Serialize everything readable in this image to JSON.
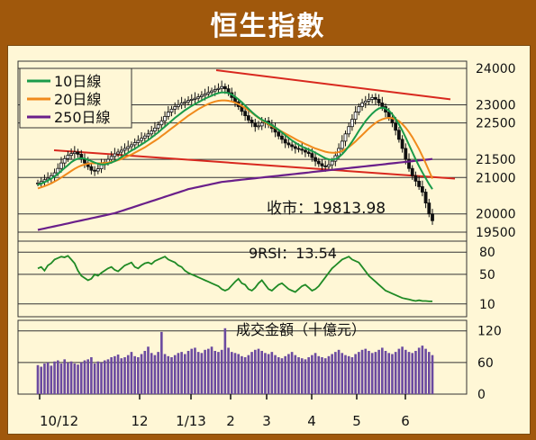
{
  "title": "恒生指數",
  "colors": {
    "background": "#a0580c",
    "panel": "#fff7d6",
    "ma10": "#1a9b4a",
    "ma20": "#f08a1c",
    "ma250": "#6a1f8a",
    "trendline": "#d8281e",
    "rsi": "#1f8a25",
    "volume": "#6b4aa0",
    "candle": "#111111"
  },
  "chart_data": [
    {
      "type": "line",
      "name": "price",
      "legend": [
        {
          "label": "10日線",
          "color": "#1a9b4a"
        },
        {
          "label": "20日線",
          "color": "#f08a1c"
        },
        {
          "label": "250日線",
          "color": "#6a1f8a"
        }
      ],
      "annotation": "收市：19813.98",
      "y_ticks": [
        24000,
        23000,
        22500,
        21500,
        21000,
        20000,
        19500
      ],
      "x_ticks": [
        "10/12",
        "12",
        "1/13",
        "2",
        "3",
        "4",
        "5",
        "6"
      ],
      "close": [
        20850,
        20890,
        20940,
        20980,
        21050,
        21130,
        21250,
        21400,
        21520,
        21610,
        21660,
        21700,
        21640,
        21520,
        21400,
        21300,
        21200,
        21180,
        21240,
        21350,
        21420,
        21500,
        21580,
        21650,
        21700,
        21750,
        21800,
        21850,
        21900,
        21960,
        22020,
        22080,
        22140,
        22200,
        22280,
        22360,
        22450,
        22560,
        22680,
        22800,
        22880,
        22950,
        23000,
        23050,
        23080,
        23120,
        23150,
        23180,
        23220,
        23260,
        23300,
        23340,
        23380,
        23420,
        23450,
        23500,
        23440,
        23330,
        23200,
        23080,
        22950,
        22820,
        22700,
        22580,
        22500,
        22400,
        22420,
        22500,
        22550,
        22450,
        22350,
        22250,
        22140,
        22050,
        21950,
        21900,
        21850,
        21800,
        21780,
        21750,
        21700,
        21660,
        21550,
        21450,
        21380,
        21320,
        21300,
        21350,
        21450,
        21600,
        21800,
        22000,
        22200,
        22400,
        22600,
        22800,
        22950,
        23050,
        23100,
        23150,
        23200,
        23150,
        23050,
        22950,
        22800,
        22650,
        22500,
        22300,
        22050,
        21800,
        21500,
        21250,
        21050,
        20900,
        20750,
        20600,
        20300,
        20000,
        19814
      ],
      "ma10": [
        20800,
        20830,
        20870,
        20920,
        20970,
        21030,
        21100,
        21180,
        21260,
        21340,
        21420,
        21480,
        21520,
        21530,
        21520,
        21490,
        21450,
        21410,
        21380,
        21360,
        21360,
        21380,
        21410,
        21450,
        21500,
        21560,
        21620,
        21680,
        21740,
        21790,
        21850,
        21910,
        21970,
        22030,
        22100,
        22170,
        22240,
        22320,
        22400,
        22480,
        22560,
        22640,
        22710,
        22780,
        22850,
        22910,
        22970,
        23020,
        23070,
        23120,
        23170,
        23210,
        23250,
        23290,
        23320,
        23340,
        23340,
        23320,
        23280,
        23220,
        23150,
        23070,
        22980,
        22890,
        22800,
        22720,
        22650,
        22590,
        22540,
        22490,
        22440,
        22380,
        22310,
        22240,
        22160,
        22090,
        22020,
        21960,
        21900,
        21850,
        21810,
        21770,
        21730,
        21680,
        21630,
        21580,
        21530,
        21500,
        21490,
        21510,
        21560,
        21640,
        21740,
        21860,
        21990,
        22130,
        22280,
        22420,
        22550,
        22660,
        22760,
        22840,
        22900,
        22920,
        22900,
        22840,
        22740,
        22610,
        22460,
        22290,
        22100,
        21900,
        21700,
        21500,
        21310,
        21140,
        20980,
        20820,
        20680
      ],
      "ma20": [
        20700,
        20730,
        20760,
        20800,
        20840,
        20890,
        20940,
        21000,
        21060,
        21120,
        21180,
        21240,
        21290,
        21330,
        21360,
        21380,
        21390,
        21390,
        21390,
        21390,
        21400,
        21410,
        21430,
        21450,
        21480,
        21510,
        21550,
        21590,
        21630,
        21680,
        21730,
        21780,
        21830,
        21890,
        21950,
        22010,
        22070,
        22140,
        22210,
        22280,
        22350,
        22420,
        22490,
        22560,
        22630,
        22700,
        22760,
        22820,
        22880,
        22930,
        22980,
        23020,
        23060,
        23090,
        23110,
        23120,
        23120,
        23110,
        23090,
        23060,
        23020,
        22970,
        22910,
        22850,
        22780,
        22710,
        22640,
        22580,
        22520,
        22460,
        22410,
        22360,
        22310,
        22260,
        22210,
        22160,
        22110,
        22060,
        22010,
        21970,
        21920,
        21880,
        21840,
        21800,
        21770,
        21740,
        21710,
        21690,
        21680,
        21680,
        21700,
        21730,
        21780,
        21840,
        21910,
        21990,
        22080,
        22170,
        22260,
        22350,
        22430,
        22500,
        22560,
        22600,
        22630,
        22640,
        22630,
        22600,
        22550,
        22470,
        22370,
        22250,
        22110,
        21950,
        21780,
        21590,
        21390,
        21180,
        20970
      ],
      "ma250": [
        19560,
        19580,
        19600,
        19620,
        19640,
        19660,
        19680,
        19700,
        19720,
        19740,
        19760,
        19780,
        19800,
        19820,
        19840,
        19860,
        19880,
        19900,
        19920,
        19940,
        19960,
        19980,
        20000,
        20020,
        20050,
        20080,
        20110,
        20140,
        20170,
        20200,
        20230,
        20260,
        20290,
        20320,
        20350,
        20380,
        20410,
        20440,
        20470,
        20500,
        20530,
        20560,
        20590,
        20620,
        20650,
        20680,
        20700,
        20720,
        20740,
        20760,
        20780,
        20800,
        20820,
        20840,
        20860,
        20880,
        20890,
        20900,
        20910,
        20920,
        20930,
        20940,
        20950,
        20960,
        20970,
        20980,
        20990,
        21000,
        21010,
        21020,
        21030,
        21040,
        21050,
        21060,
        21070,
        21080,
        21090,
        21100,
        21110,
        21120,
        21130,
        21140,
        21150,
        21160,
        21170,
        21180,
        21190,
        21200,
        21210,
        21220,
        21230,
        21240,
        21250,
        21260,
        21270,
        21280,
        21290,
        21300,
        21310,
        21320,
        21330,
        21340,
        21350,
        21360,
        21370,
        21380,
        21390,
        21400,
        21410,
        21420,
        21430,
        21440,
        21450,
        21460,
        21470,
        21480,
        21490,
        21500,
        21510
      ]
    },
    {
      "type": "line",
      "name": "rsi",
      "annotation": "9RSI：13.54",
      "y_ticks": [
        80,
        50,
        10
      ],
      "values": [
        58,
        60,
        55,
        62,
        65,
        70,
        72,
        74,
        73,
        75,
        70,
        65,
        55,
        48,
        45,
        42,
        44,
        50,
        48,
        52,
        55,
        58,
        60,
        56,
        54,
        58,
        62,
        64,
        66,
        60,
        58,
        62,
        65,
        66,
        64,
        68,
        70,
        72,
        74,
        70,
        68,
        66,
        62,
        60,
        55,
        52,
        50,
        48,
        46,
        44,
        42,
        40,
        38,
        36,
        34,
        30,
        28,
        30,
        35,
        40,
        44,
        38,
        36,
        30,
        28,
        32,
        38,
        42,
        36,
        30,
        28,
        32,
        36,
        38,
        34,
        30,
        28,
        26,
        30,
        34,
        36,
        32,
        28,
        30,
        34,
        40,
        46,
        52,
        58,
        62,
        66,
        70,
        72,
        74,
        70,
        68,
        66,
        60,
        54,
        48,
        44,
        40,
        36,
        32,
        28,
        26,
        24,
        22,
        20,
        18,
        17,
        16,
        15,
        14,
        15,
        14,
        14,
        13.5,
        13.54
      ]
    },
    {
      "type": "bar",
      "name": "turnover",
      "annotation": "成交金額（十億元）",
      "y_ticks": [
        120,
        60,
        0
      ],
      "values": [
        55,
        52,
        58,
        60,
        54,
        62,
        64,
        58,
        66,
        60,
        62,
        58,
        56,
        60,
        64,
        66,
        70,
        58,
        62,
        60,
        64,
        66,
        70,
        72,
        75,
        68,
        70,
        74,
        80,
        72,
        70,
        76,
        82,
        90,
        78,
        74,
        80,
        118,
        76,
        72,
        70,
        74,
        78,
        80,
        76,
        82,
        86,
        88,
        80,
        78,
        84,
        86,
        90,
        82,
        80,
        84,
        125,
        88,
        80,
        78,
        76,
        72,
        70,
        74,
        80,
        84,
        86,
        82,
        78,
        76,
        80,
        74,
        70,
        68,
        72,
        76,
        80,
        74,
        70,
        68,
        66,
        70,
        74,
        78,
        72,
        70,
        68,
        72,
        76,
        80,
        84,
        78,
        74,
        72,
        70,
        76,
        80,
        84,
        86,
        82,
        78,
        80,
        84,
        88,
        82,
        78,
        76,
        80,
        86,
        90,
        84,
        80,
        78,
        82,
        88,
        92,
        86,
        80,
        74
      ]
    }
  ]
}
